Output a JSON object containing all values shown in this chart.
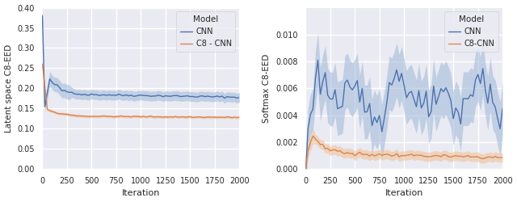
{
  "left": {
    "ylabel": "Latent space C8-EED",
    "xlabel": "Iteration",
    "legend_title": "Model",
    "legend_entries": [
      "CNN",
      "C8 - CNN"
    ],
    "cnn_color": "#4C72B0",
    "c8_color": "#DD8452",
    "cnn_color_fill": "#9CB8D8",
    "c8_color_fill": "#F0C090",
    "xlim": [
      0,
      2000
    ],
    "ylim": [
      0.0,
      0.4
    ],
    "yticks": [
      0.0,
      0.05,
      0.1,
      0.15,
      0.2,
      0.25,
      0.3,
      0.35,
      0.4
    ],
    "xticks": [
      0,
      250,
      500,
      750,
      1000,
      1250,
      1500,
      1750,
      2000
    ]
  },
  "right": {
    "ylabel": "Softmax C8-EED",
    "xlabel": "Iteration",
    "legend_title": "Model",
    "legend_entries": [
      "CNN",
      "C8-CNN"
    ],
    "cnn_color": "#4C72B0",
    "c8_color": "#DD8452",
    "cnn_color_fill": "#9CB8D8",
    "c8_color_fill": "#F0C090",
    "xlim": [
      0,
      2000
    ],
    "ylim": [
      0.0,
      0.012
    ],
    "yticks": [
      0.0,
      0.002,
      0.004,
      0.006,
      0.008,
      0.01
    ],
    "xticks": [
      0,
      250,
      500,
      750,
      1000,
      1250,
      1500,
      1750,
      2000
    ]
  },
  "fig_bg": "#EAEAF2",
  "ax_bg": "#EAEAF2",
  "grid_color": "#ffffff",
  "spine_color": "#ffffff"
}
